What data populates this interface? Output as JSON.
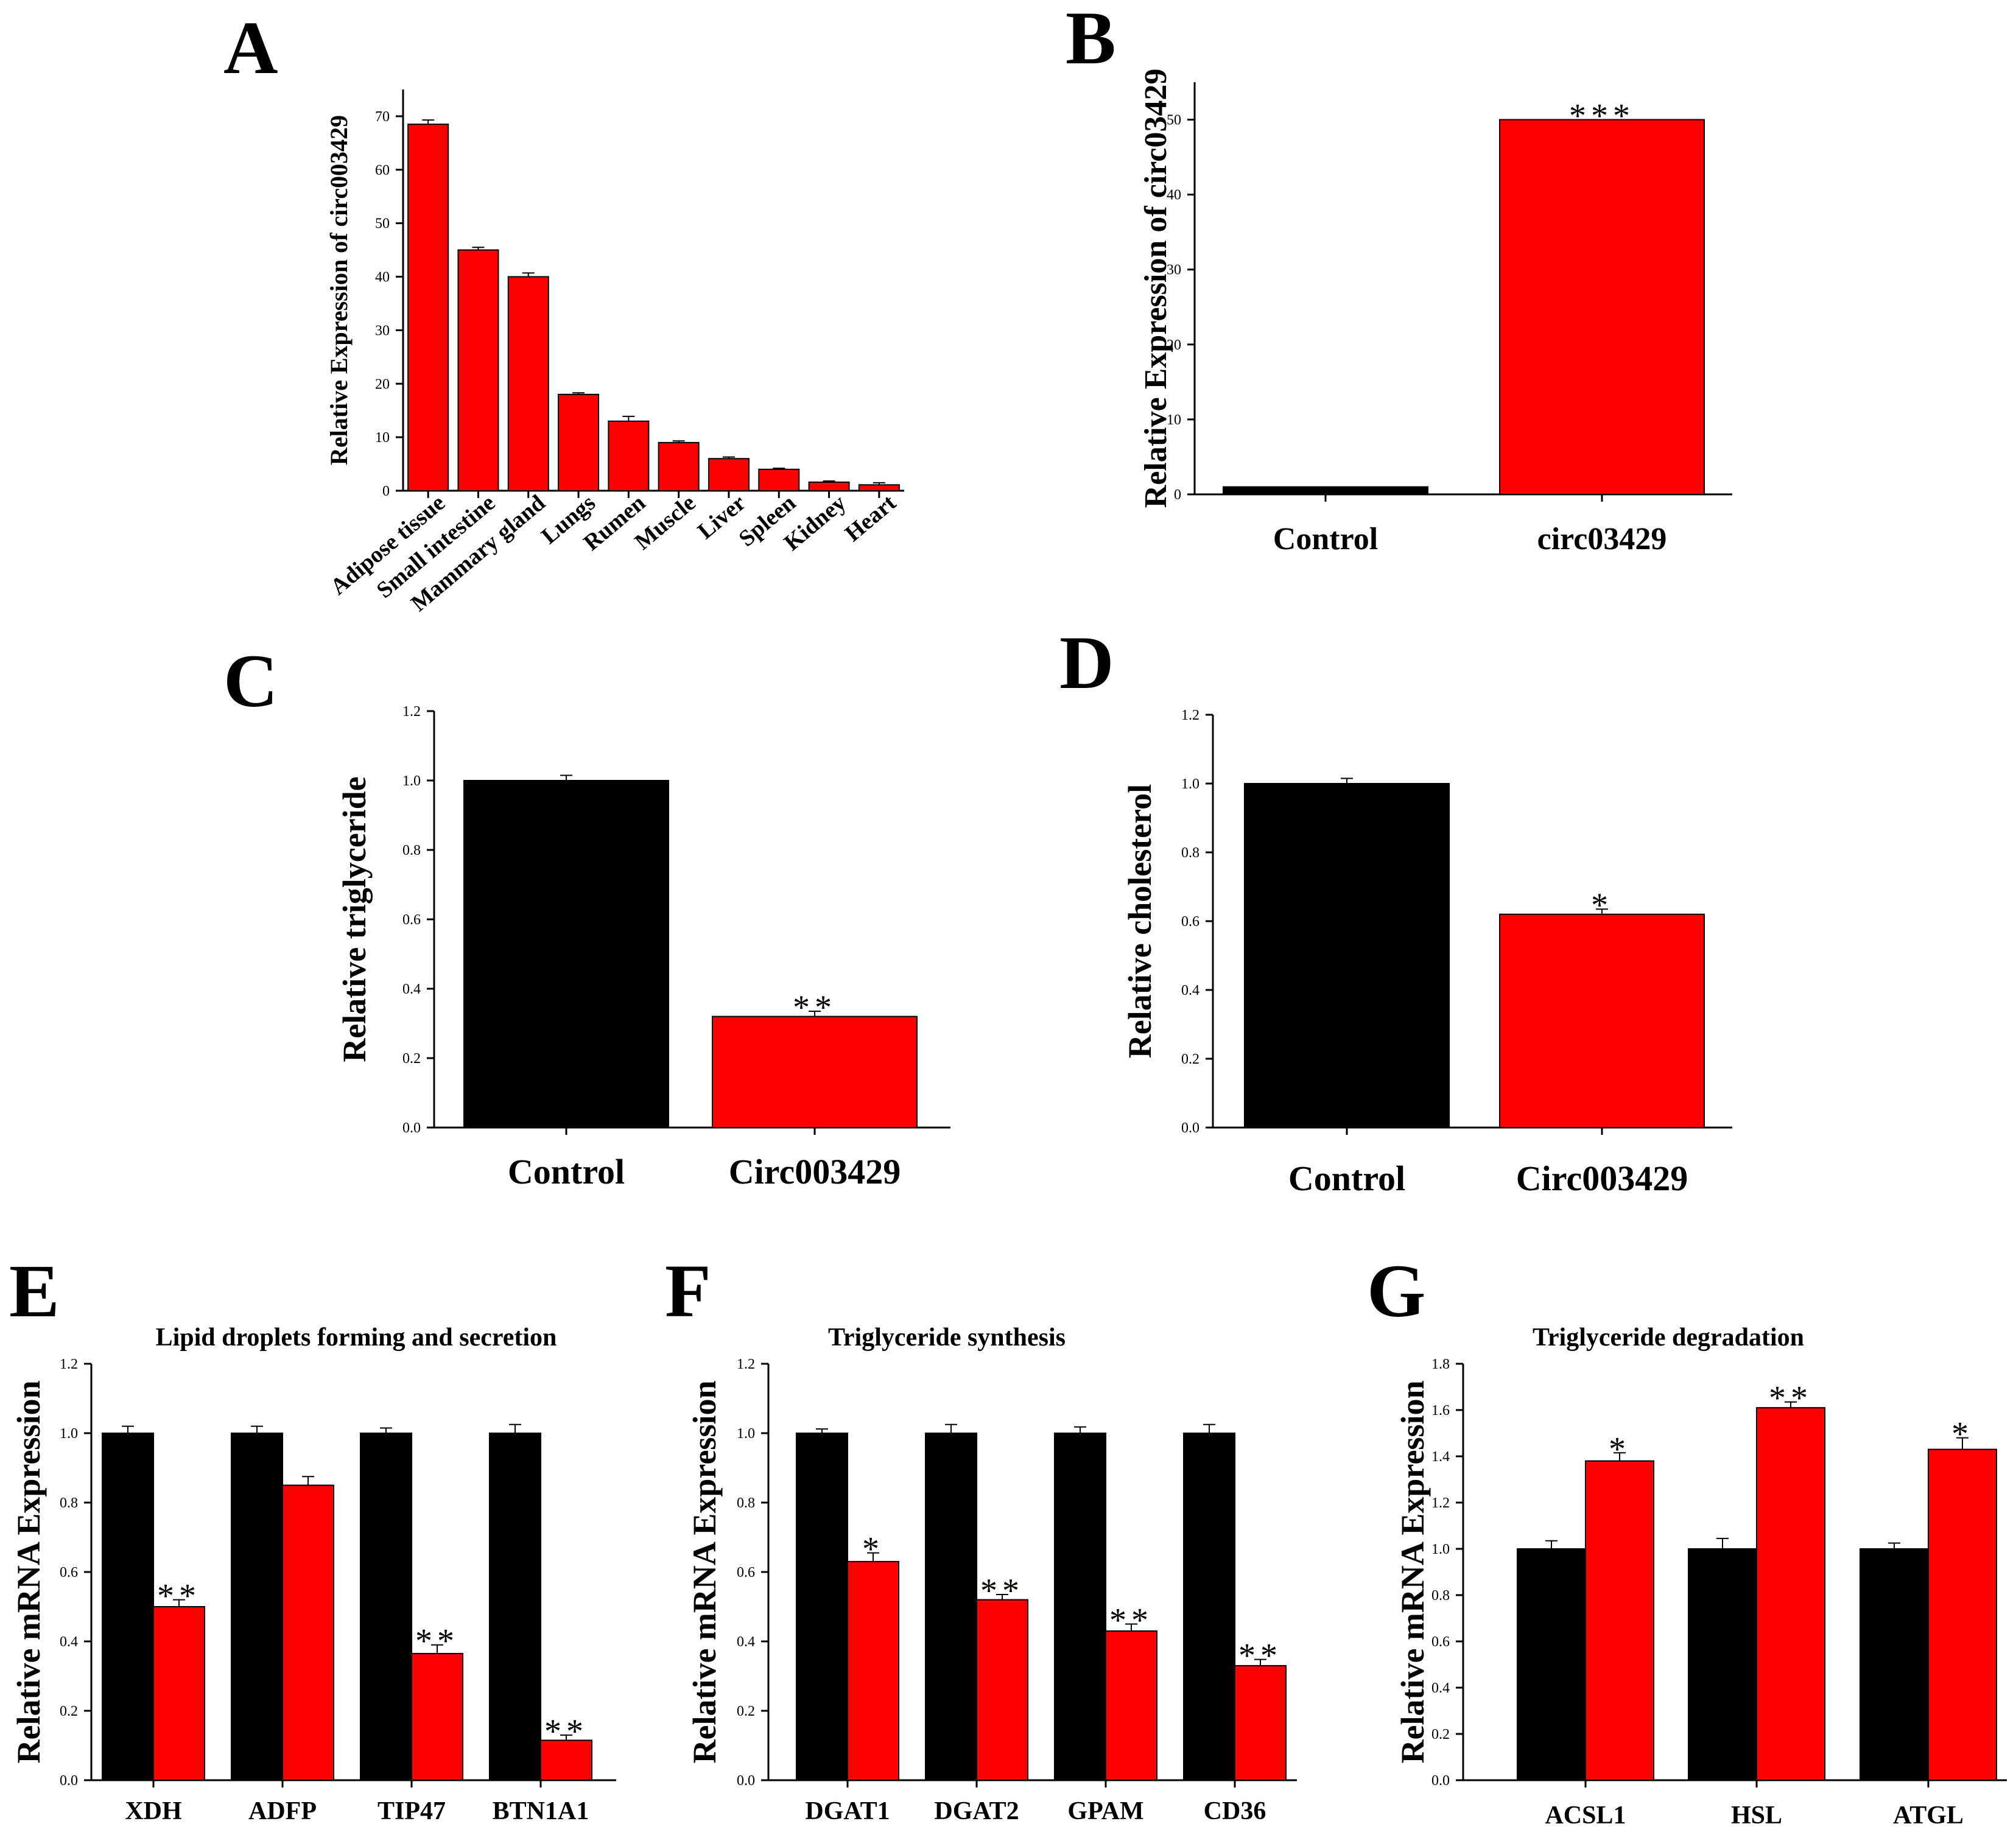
{
  "figure": {
    "colors": {
      "control": "#000000",
      "treatment": "#ff0000",
      "axis": "#000000"
    }
  },
  "chart_data": [
    {
      "panel": "A",
      "type": "bar",
      "title": "",
      "ylabel": "Relative Expression of circ003429",
      "xlabel": "",
      "ylim": [
        0,
        75
      ],
      "yticks": [
        0,
        10,
        20,
        30,
        40,
        50,
        60,
        70
      ],
      "categories": [
        "Adipose tissue",
        "Small intestine",
        "Mammary gland",
        "Lungs",
        "Rumen",
        "Muscle",
        "Liver",
        "Spleen",
        "Kidney",
        "Heart"
      ],
      "series": [
        {
          "name": "Expression",
          "color": "#ff0000",
          "values": [
            68.5,
            45,
            40,
            18,
            13,
            9,
            6,
            4,
            1.6,
            1.1
          ],
          "errors": [
            0.8,
            0.5,
            0.7,
            0.3,
            0.9,
            0.3,
            0.3,
            0.2,
            0.2,
            0.4
          ],
          "significance": [
            "",
            "",
            "",
            "",
            "",
            "",
            "",
            "",
            "",
            ""
          ]
        }
      ]
    },
    {
      "panel": "B",
      "type": "bar",
      "title": "",
      "ylabel": "Relative Expression of circ03429",
      "xlabel": "",
      "ylim": [
        0,
        55
      ],
      "yticks": [
        0,
        10,
        20,
        30,
        40,
        50
      ],
      "categories": [
        "Control",
        "circ03429"
      ],
      "series": [
        {
          "name": "Expression",
          "colors": [
            "#000000",
            "#ff0000"
          ],
          "values": [
            1,
            50
          ],
          "errors": [
            0,
            0
          ],
          "significance": [
            "",
            "***"
          ]
        }
      ]
    },
    {
      "panel": "C",
      "type": "bar",
      "title": "",
      "ylabel": "Relative triglyceride",
      "xlabel": "",
      "ylim": [
        0,
        1.2
      ],
      "yticks": [
        "0.0",
        "0.2",
        "0.4",
        "0.6",
        "0.8",
        "1.0",
        "1.2"
      ],
      "categories": [
        "Control",
        "Circ003429"
      ],
      "series": [
        {
          "name": "Triglyceride",
          "colors": [
            "#000000",
            "#ff0000"
          ],
          "values": [
            1.0,
            0.32
          ],
          "errors": [
            0.015,
            0.015
          ],
          "significance": [
            "",
            "**"
          ]
        }
      ]
    },
    {
      "panel": "D",
      "type": "bar",
      "title": "",
      "ylabel": "Relative cholesterol",
      "xlabel": "",
      "ylim": [
        0,
        1.2
      ],
      "yticks": [
        "0.0",
        "0.2",
        "0.4",
        "0.6",
        "0.8",
        "1.0",
        "1.2"
      ],
      "categories": [
        "Control",
        "Circ003429"
      ],
      "series": [
        {
          "name": "Cholesterol",
          "colors": [
            "#000000",
            "#ff0000"
          ],
          "values": [
            1.0,
            0.62
          ],
          "errors": [
            0.015,
            0.015
          ],
          "significance": [
            "",
            "*"
          ]
        }
      ]
    },
    {
      "panel": "E",
      "type": "bar",
      "title": "Lipid droplets forming and secretion",
      "ylabel": "Relative mRNA Expression",
      "xlabel": "",
      "ylim": [
        0,
        1.2
      ],
      "yticks": [
        "0.0",
        "0.2",
        "0.4",
        "0.6",
        "0.8",
        "1.0",
        "1.2"
      ],
      "categories": [
        "XDH",
        "ADFP",
        "TIP47",
        "BTN1A1"
      ],
      "series": [
        {
          "name": "Control",
          "color": "#000000",
          "values": [
            1.0,
            1.0,
            1.0,
            1.0
          ],
          "errors": [
            0.02,
            0.02,
            0.015,
            0.025
          ],
          "significance": [
            "",
            "",
            "",
            ""
          ]
        },
        {
          "name": "Circ003429",
          "color": "#ff0000",
          "values": [
            0.5,
            0.85,
            0.365,
            0.115
          ],
          "errors": [
            0.02,
            0.025,
            0.025,
            0.015
          ],
          "significance": [
            "**",
            "",
            "**",
            "**"
          ]
        }
      ]
    },
    {
      "panel": "F",
      "type": "bar",
      "title": "Triglyceride synthesis",
      "ylabel": "Relative mRNA Expression",
      "xlabel": "",
      "ylim": [
        0,
        1.2
      ],
      "yticks": [
        "0.0",
        "0.2",
        "0.4",
        "0.6",
        "0.8",
        "1.0",
        "1.2"
      ],
      "categories": [
        "DGAT1",
        "DGAT2",
        "GPAM",
        "CD36"
      ],
      "series": [
        {
          "name": "Control",
          "color": "#000000",
          "values": [
            1.0,
            1.0,
            1.0,
            1.0
          ],
          "errors": [
            0.012,
            0.025,
            0.018,
            0.025
          ],
          "significance": [
            "",
            "",
            "",
            ""
          ]
        },
        {
          "name": "Circ003429",
          "color": "#ff0000",
          "values": [
            0.63,
            0.52,
            0.43,
            0.33
          ],
          "errors": [
            0.025,
            0.015,
            0.02,
            0.018
          ],
          "significance": [
            "*",
            "**",
            "**",
            "**"
          ]
        }
      ]
    },
    {
      "panel": "G",
      "type": "bar",
      "title": "Triglyceride degradation",
      "ylabel": "Relative mRNA Expression",
      "xlabel": "",
      "ylim": [
        0,
        1.8
      ],
      "yticks": [
        "0.0",
        "0.2",
        "0.4",
        "0.6",
        "0.8",
        "1.0",
        "1.2",
        "1.4",
        "1.6",
        "1.8"
      ],
      "categories": [
        "ACSL1",
        "HSL",
        "ATGL"
      ],
      "series": [
        {
          "name": "Control",
          "color": "#000000",
          "values": [
            1.0,
            1.0,
            1.0
          ],
          "errors": [
            0.035,
            0.045,
            0.025
          ],
          "significance": [
            "",
            "",
            ""
          ]
        },
        {
          "name": "Circ003429",
          "color": "#ff0000",
          "values": [
            1.38,
            1.61,
            1.43
          ],
          "errors": [
            0.035,
            0.025,
            0.05
          ],
          "significance": [
            "*",
            "**",
            "*"
          ]
        }
      ]
    }
  ]
}
